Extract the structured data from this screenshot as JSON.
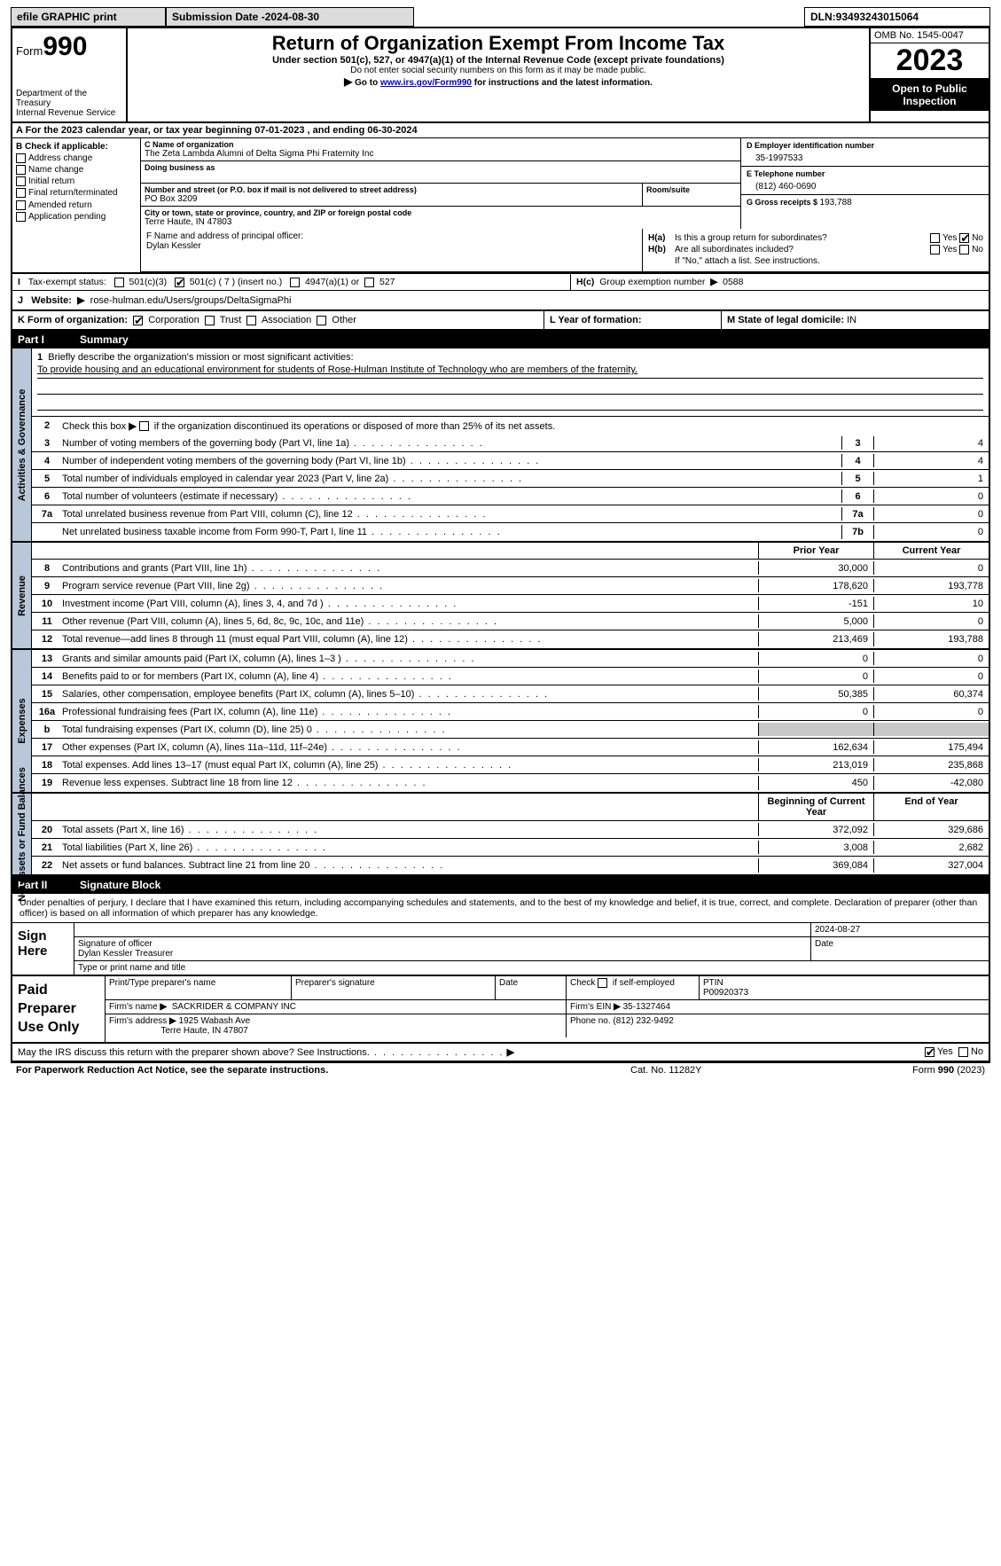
{
  "topbar": {
    "efile": "efile GRAPHIC print",
    "subdate_label": "Submission Date - ",
    "subdate": "2024-08-30",
    "dln_label": "DLN: ",
    "dln": "93493243015064"
  },
  "header": {
    "form": "Form",
    "form_no": "990",
    "dept": "Department of the Treasury\nInternal Revenue Service",
    "title": "Return of Organization Exempt From Income Tax",
    "sub": "Under section 501(c), 527, or 4947(a)(1) of the Internal Revenue Code (except private foundations)",
    "nosec": "Do not enter social security numbers on this form as it may be made public.",
    "goto_pre": "Go to ",
    "goto_link": "www.irs.gov/Form990",
    "goto_post": " for instructions and the latest information.",
    "omb": "OMB No. 1545-0047",
    "year": "2023",
    "open": "Open to Public Inspection"
  },
  "A": {
    "text": "A  For the 2023 calendar year, or tax year beginning 07-01-2023    , and ending 06-30-2024"
  },
  "B": {
    "label": "B Check if applicable:",
    "items": [
      "Address change",
      "Name change",
      "Initial return",
      "Final return/terminated",
      "Amended return",
      "Application pending"
    ]
  },
  "C": {
    "name_lbl": "C Name of organization",
    "name": "The Zeta Lambda Alumni of Delta Sigma Phi Fraternity Inc",
    "dba_lbl": "Doing business as",
    "addr_lbl": "Number and street (or P.O. box if mail is not delivered to street address)",
    "addr": "PO Box 3209",
    "room_lbl": "Room/suite",
    "city_lbl": "City or town, state or province, country, and ZIP or foreign postal code",
    "city": "Terre Haute, IN  47803"
  },
  "D": {
    "lbl": "D Employer identification number",
    "val": "35-1997533"
  },
  "E": {
    "lbl": "E Telephone number",
    "val": "(812) 460-0690"
  },
  "G": {
    "lbl": "G Gross receipts $ ",
    "val": "193,788"
  },
  "F": {
    "lbl": "F  Name and address of principal officer:",
    "val": "Dylan Kessler"
  },
  "H": {
    "a": "Is this a group return for subordinates?",
    "a_yes": "Yes",
    "a_no_checked": true,
    "a_no": "No",
    "b": "Are all subordinates included?",
    "b_yes": "Yes",
    "b_no": "No",
    "ifno": "If \"No,\" attach a list. See instructions.",
    "c_lbl": "Group exemption number",
    "c_val": "0588"
  },
  "I": {
    "lbl": "Tax-exempt status:",
    "o1": "501(c)(3)",
    "o2": "501(c) ( 7 ) (insert no.)",
    "o3": "4947(a)(1) or",
    "o4": "527"
  },
  "J": {
    "lbl": "Website:",
    "val": "rose-hulman.edu/Users/groups/DeltaSigmaPhi"
  },
  "K": {
    "lbl": "K Form of organization:",
    "corp": "Corporation",
    "trust": "Trust",
    "assoc": "Association",
    "other": "Other"
  },
  "L": {
    "lbl": "L Year of formation:"
  },
  "M": {
    "lbl": "M State of legal domicile: ",
    "val": "IN"
  },
  "part1": {
    "num": "Part I",
    "title": "Summary"
  },
  "summary": {
    "q1": "Briefly describe the organization's mission or most significant activities:",
    "mission": "To provide housing and an educational environment for students of Rose-Hulman Institute of Technology who are members of the fraternity.",
    "q2": "Check this box          if the organization discontinued its operations or disposed of more than 25% of its net assets.",
    "rows": [
      {
        "n": "3",
        "t": "Number of voting members of the governing body (Part VI, line 1a)",
        "box": "3",
        "v": "4"
      },
      {
        "n": "4",
        "t": "Number of independent voting members of the governing body (Part VI, line 1b)",
        "box": "4",
        "v": "4"
      },
      {
        "n": "5",
        "t": "Total number of individuals employed in calendar year 2023 (Part V, line 2a)",
        "box": "5",
        "v": "1"
      },
      {
        "n": "6",
        "t": "Total number of volunteers (estimate if necessary)",
        "box": "6",
        "v": "0"
      },
      {
        "n": "7a",
        "t": "Total unrelated business revenue from Part VIII, column (C), line 12",
        "box": "7a",
        "v": "0"
      },
      {
        "n": "",
        "t": "Net unrelated business taxable income from Form 990-T, Part I, line 11",
        "box": "7b",
        "v": "0"
      }
    ]
  },
  "revenue": {
    "hdr_prior": "Prior Year",
    "hdr_curr": "Current Year",
    "rows": [
      {
        "n": "8",
        "t": "Contributions and grants (Part VIII, line 1h)",
        "p": "30,000",
        "c": "0"
      },
      {
        "n": "9",
        "t": "Program service revenue (Part VIII, line 2g)",
        "p": "178,620",
        "c": "193,778"
      },
      {
        "n": "10",
        "t": "Investment income (Part VIII, column (A), lines 3, 4, and 7d )",
        "p": "-151",
        "c": "10"
      },
      {
        "n": "11",
        "t": "Other revenue (Part VIII, column (A), lines 5, 6d, 8c, 9c, 10c, and 11e)",
        "p": "5,000",
        "c": "0"
      },
      {
        "n": "12",
        "t": "Total revenue—add lines 8 through 11 (must equal Part VIII, column (A), line 12)",
        "p": "213,469",
        "c": "193,788"
      }
    ]
  },
  "expenses": {
    "rows": [
      {
        "n": "13",
        "t": "Grants and similar amounts paid (Part IX, column (A), lines 1–3 )",
        "p": "0",
        "c": "0"
      },
      {
        "n": "14",
        "t": "Benefits paid to or for members (Part IX, column (A), line 4)",
        "p": "0",
        "c": "0"
      },
      {
        "n": "15",
        "t": "Salaries, other compensation, employee benefits (Part IX, column (A), lines 5–10)",
        "p": "50,385",
        "c": "60,374"
      },
      {
        "n": "16a",
        "t": "Professional fundraising fees (Part IX, column (A), line 11e)",
        "p": "0",
        "c": "0"
      },
      {
        "n": "b",
        "t": "Total fundraising expenses (Part IX, column (D), line 25) 0",
        "p": "",
        "c": "",
        "shade": true
      },
      {
        "n": "17",
        "t": "Other expenses (Part IX, column (A), lines 11a–11d, 11f–24e)",
        "p": "162,634",
        "c": "175,494"
      },
      {
        "n": "18",
        "t": "Total expenses. Add lines 13–17 (must equal Part IX, column (A), line 25)",
        "p": "213,019",
        "c": "235,868"
      },
      {
        "n": "19",
        "t": "Revenue less expenses. Subtract line 18 from line 12",
        "p": "450",
        "c": "-42,080"
      }
    ]
  },
  "netassets": {
    "hdr_beg": "Beginning of Current Year",
    "hdr_end": "End of Year",
    "rows": [
      {
        "n": "20",
        "t": "Total assets (Part X, line 16)",
        "p": "372,092",
        "c": "329,686"
      },
      {
        "n": "21",
        "t": "Total liabilities (Part X, line 26)",
        "p": "3,008",
        "c": "2,682"
      },
      {
        "n": "22",
        "t": "Net assets or fund balances. Subtract line 21 from line 20",
        "p": "369,084",
        "c": "327,004"
      }
    ]
  },
  "part2": {
    "num": "Part II",
    "title": "Signature Block"
  },
  "sig": {
    "text": "Under penalties of perjury, I declare that I have examined this return, including accompanying schedules and statements, and to the best of my knowledge and belief, it is true, correct, and complete. Declaration of preparer (other than officer) is based on all information of which preparer has any knowledge.",
    "label": "Sign Here",
    "date": "2024-08-27",
    "sig_lbl": "Signature of officer",
    "officer": "Dylan Kessler Treasurer",
    "type_lbl": "Type or print name and title",
    "date_lbl": "Date"
  },
  "prep": {
    "label": "Paid Preparer Use Only",
    "h_name": "Print/Type preparer's name",
    "h_sig": "Preparer's signature",
    "h_date": "Date",
    "h_check": "Check         if self-employed",
    "h_ptin": "PTIN",
    "ptin": "P00920373",
    "firm_lbl": "Firm's name",
    "firm": "SACKRIDER & COMPANY INC",
    "ein_lbl": "Firm's EIN ",
    "ein": "35-1327464",
    "addr_lbl": "Firm's address",
    "addr1": "1925 Wabash Ave",
    "addr2": "Terre Haute, IN  47807",
    "phone_lbl": "Phone no. ",
    "phone": "(812) 232-9492"
  },
  "discuss": {
    "txt": "May the IRS discuss this return with the preparer shown above? See Instructions.",
    "yes": "Yes",
    "no": "No"
  },
  "footer": {
    "left": "For Paperwork Reduction Act Notice, see the separate instructions.",
    "mid": "Cat. No. 11282Y",
    "right_pre": "Form ",
    "right_form": "990",
    "right_post": " (2023)"
  }
}
